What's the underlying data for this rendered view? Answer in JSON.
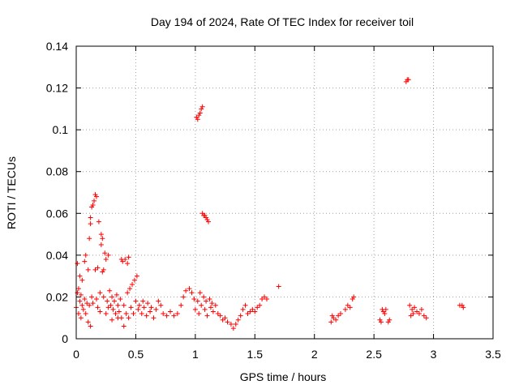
{
  "chart_data": {
    "type": "scatter",
    "title": "Day 194 of 2024, Rate Of TEC Index for receiver toil",
    "xlabel": "GPS time / hours",
    "ylabel": "ROTI / TECUs",
    "xlim": [
      0,
      3.5
    ],
    "ylim": [
      0,
      0.14
    ],
    "xticks": [
      0,
      0.5,
      1,
      1.5,
      2,
      2.5,
      3,
      3.5
    ],
    "xtick_labels": [
      "0",
      "0.5",
      "1",
      "1.5",
      "2",
      "2.5",
      "3",
      "3.5"
    ],
    "yticks": [
      0,
      0.02,
      0.04,
      0.06,
      0.08,
      0.1,
      0.12,
      0.14
    ],
    "ytick_labels": [
      "0",
      "0.02",
      "0.04",
      "0.06",
      "0.08",
      "0.1",
      "0.12",
      "0.14"
    ],
    "grid": true,
    "marker": "+",
    "marker_color": "#ff0000",
    "series": [
      {
        "name": "ROTI",
        "points": [
          [
            0.0,
            0.015
          ],
          [
            0.01,
            0.022
          ],
          [
            0.01,
            0.036
          ],
          [
            0.02,
            0.024
          ],
          [
            0.02,
            0.012
          ],
          [
            0.03,
            0.018
          ],
          [
            0.03,
            0.03
          ],
          [
            0.04,
            0.01
          ],
          [
            0.04,
            0.021
          ],
          [
            0.05,
            0.016
          ],
          [
            0.05,
            0.028
          ],
          [
            0.06,
            0.014
          ],
          [
            0.07,
            0.019
          ],
          [
            0.07,
            0.037
          ],
          [
            0.08,
            0.04
          ],
          [
            0.08,
            0.012
          ],
          [
            0.09,
            0.017
          ],
          [
            0.1,
            0.033
          ],
          [
            0.1,
            0.008
          ],
          [
            0.11,
            0.048
          ],
          [
            0.11,
            0.016
          ],
          [
            0.12,
            0.058
          ],
          [
            0.12,
            0.055
          ],
          [
            0.12,
            0.006
          ],
          [
            0.13,
            0.02
          ],
          [
            0.13,
            0.063
          ],
          [
            0.14,
            0.064
          ],
          [
            0.14,
            0.017
          ],
          [
            0.15,
            0.066
          ],
          [
            0.16,
            0.069
          ],
          [
            0.16,
            0.033
          ],
          [
            0.17,
            0.068
          ],
          [
            0.17,
            0.019
          ],
          [
            0.18,
            0.034
          ],
          [
            0.18,
            0.015
          ],
          [
            0.19,
            0.056
          ],
          [
            0.2,
            0.022
          ],
          [
            0.2,
            0.013
          ],
          [
            0.21,
            0.05
          ],
          [
            0.21,
            0.045
          ],
          [
            0.22,
            0.048
          ],
          [
            0.22,
            0.032
          ],
          [
            0.23,
            0.033
          ],
          [
            0.23,
            0.02
          ],
          [
            0.24,
            0.041
          ],
          [
            0.25,
            0.038
          ],
          [
            0.25,
            0.012
          ],
          [
            0.26,
            0.018
          ],
          [
            0.27,
            0.04
          ],
          [
            0.27,
            0.015
          ],
          [
            0.28,
            0.023
          ],
          [
            0.29,
            0.016
          ],
          [
            0.3,
            0.02
          ],
          [
            0.3,
            0.009
          ],
          [
            0.31,
            0.014
          ],
          [
            0.32,
            0.018
          ],
          [
            0.33,
            0.012
          ],
          [
            0.34,
            0.021
          ],
          [
            0.35,
            0.016
          ],
          [
            0.35,
            0.01
          ],
          [
            0.36,
            0.013
          ],
          [
            0.37,
            0.019
          ],
          [
            0.38,
            0.038
          ],
          [
            0.38,
            0.01
          ],
          [
            0.39,
            0.037
          ],
          [
            0.4,
            0.016
          ],
          [
            0.4,
            0.006
          ],
          [
            0.41,
            0.038
          ],
          [
            0.42,
            0.012
          ],
          [
            0.43,
            0.036
          ],
          [
            0.43,
            0.022
          ],
          [
            0.44,
            0.039
          ],
          [
            0.44,
            0.01
          ],
          [
            0.45,
            0.024
          ],
          [
            0.46,
            0.015
          ],
          [
            0.47,
            0.026
          ],
          [
            0.48,
            0.012
          ],
          [
            0.49,
            0.028
          ],
          [
            0.5,
            0.018
          ],
          [
            0.51,
            0.03
          ],
          [
            0.52,
            0.014
          ],
          [
            0.53,
            0.016
          ],
          [
            0.55,
            0.012
          ],
          [
            0.56,
            0.018
          ],
          [
            0.57,
            0.015
          ],
          [
            0.59,
            0.011
          ],
          [
            0.6,
            0.017
          ],
          [
            0.62,
            0.013
          ],
          [
            0.63,
            0.015
          ],
          [
            0.65,
            0.01
          ],
          [
            0.67,
            0.014
          ],
          [
            0.69,
            0.018
          ],
          [
            0.71,
            0.016
          ],
          [
            0.73,
            0.012
          ],
          [
            0.76,
            0.011
          ],
          [
            0.79,
            0.013
          ],
          [
            0.82,
            0.011
          ],
          [
            0.85,
            0.012
          ],
          [
            0.88,
            0.016
          ],
          [
            0.9,
            0.02
          ],
          [
            0.92,
            0.023
          ],
          [
            0.95,
            0.024
          ],
          [
            0.97,
            0.022
          ],
          [
            0.99,
            0.019
          ],
          [
            1.0,
            0.014
          ],
          [
            1.01,
            0.106
          ],
          [
            1.02,
            0.105
          ],
          [
            1.03,
            0.107
          ],
          [
            1.04,
            0.108
          ],
          [
            1.05,
            0.11
          ],
          [
            1.06,
            0.111
          ],
          [
            1.02,
            0.018
          ],
          [
            1.03,
            0.012
          ],
          [
            1.04,
            0.022
          ],
          [
            1.05,
            0.016
          ],
          [
            1.06,
            0.06
          ],
          [
            1.07,
            0.059
          ],
          [
            1.08,
            0.059
          ],
          [
            1.09,
            0.058
          ],
          [
            1.1,
            0.057
          ],
          [
            1.11,
            0.056
          ],
          [
            1.07,
            0.02
          ],
          [
            1.08,
            0.014
          ],
          [
            1.09,
            0.018
          ],
          [
            1.1,
            0.011
          ],
          [
            1.12,
            0.019
          ],
          [
            1.13,
            0.015
          ],
          [
            1.14,
            0.017
          ],
          [
            1.15,
            0.013
          ],
          [
            1.17,
            0.016
          ],
          [
            1.19,
            0.012
          ],
          [
            1.21,
            0.011
          ],
          [
            1.23,
            0.009
          ],
          [
            1.25,
            0.01
          ],
          [
            1.27,
            0.008
          ],
          [
            1.3,
            0.007
          ],
          [
            1.32,
            0.005
          ],
          [
            1.34,
            0.007
          ],
          [
            1.36,
            0.009
          ],
          [
            1.38,
            0.011
          ],
          [
            1.4,
            0.014
          ],
          [
            1.42,
            0.016
          ],
          [
            1.44,
            0.012
          ],
          [
            1.46,
            0.013
          ],
          [
            1.48,
            0.014
          ],
          [
            1.5,
            0.013
          ],
          [
            1.52,
            0.015
          ],
          [
            1.54,
            0.016
          ],
          [
            1.56,
            0.019
          ],
          [
            1.58,
            0.02
          ],
          [
            1.6,
            0.019
          ],
          [
            1.7,
            0.025
          ],
          [
            2.14,
            0.008
          ],
          [
            2.15,
            0.011
          ],
          [
            2.16,
            0.01
          ],
          [
            2.18,
            0.009
          ],
          [
            2.2,
            0.011
          ],
          [
            2.22,
            0.012
          ],
          [
            2.26,
            0.014
          ],
          [
            2.28,
            0.016
          ],
          [
            2.3,
            0.015
          ],
          [
            2.32,
            0.019
          ],
          [
            2.33,
            0.02
          ],
          [
            2.55,
            0.009
          ],
          [
            2.56,
            0.008
          ],
          [
            2.57,
            0.014
          ],
          [
            2.58,
            0.013
          ],
          [
            2.59,
            0.012
          ],
          [
            2.6,
            0.014
          ],
          [
            2.62,
            0.008
          ],
          [
            2.63,
            0.009
          ],
          [
            2.77,
            0.123
          ],
          [
            2.78,
            0.124
          ],
          [
            2.79,
            0.124
          ],
          [
            2.8,
            0.016
          ],
          [
            2.81,
            0.011
          ],
          [
            2.82,
            0.014
          ],
          [
            2.83,
            0.012
          ],
          [
            2.84,
            0.015
          ],
          [
            2.86,
            0.013
          ],
          [
            2.88,
            0.012
          ],
          [
            2.9,
            0.014
          ],
          [
            2.92,
            0.011
          ],
          [
            2.94,
            0.01
          ],
          [
            3.22,
            0.016
          ],
          [
            3.24,
            0.016
          ],
          [
            3.25,
            0.015
          ]
        ]
      }
    ]
  }
}
